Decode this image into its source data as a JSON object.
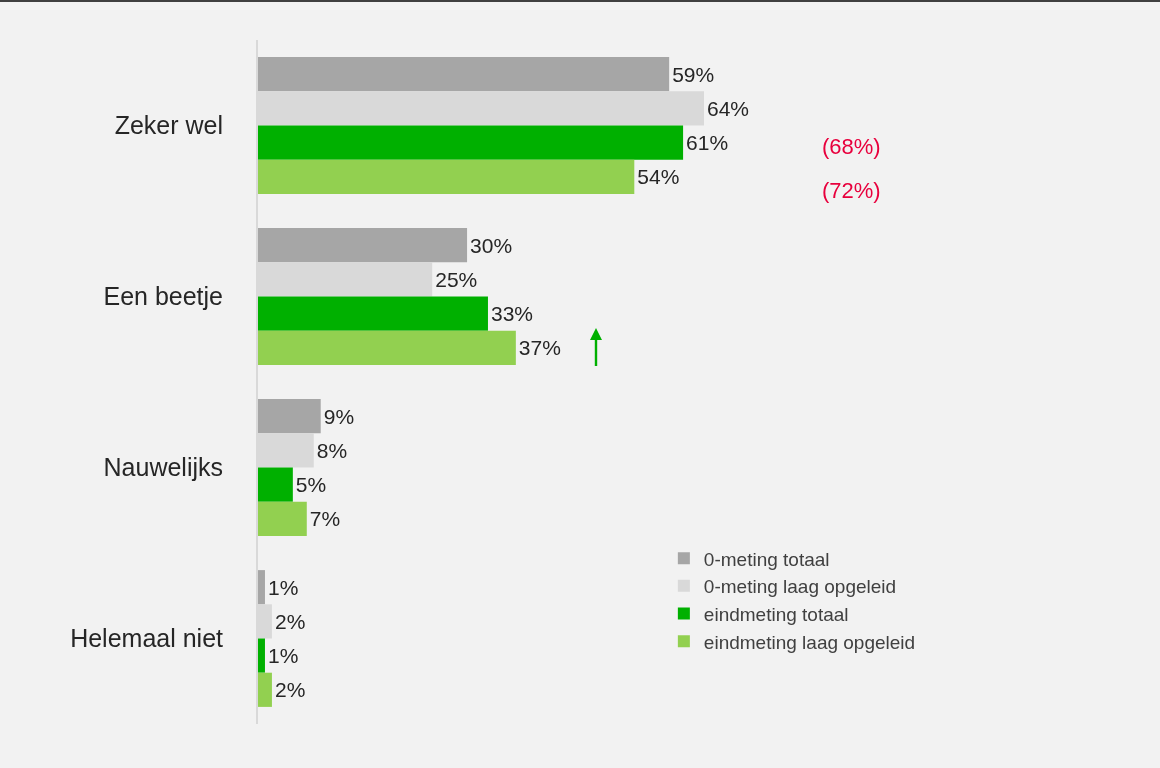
{
  "chart_data": {
    "type": "bar",
    "orientation": "horizontal",
    "categories": [
      "Zeker wel",
      "Een beetje",
      "Nauwelijks",
      "Helemaal niet"
    ],
    "series": [
      {
        "name": "0-meting totaal",
        "color": "#a6a6a6",
        "values": [
          59,
          30,
          9,
          1
        ],
        "value_labels": [
          "59%",
          "30%",
          "9%",
          "1%"
        ]
      },
      {
        "name": "0-meting laag opgeleid",
        "color": "#d9d9d9",
        "values": [
          64,
          25,
          8,
          2
        ],
        "value_labels": [
          "64%",
          "25%",
          "8%",
          "2%"
        ]
      },
      {
        "name": "eindmeting totaal",
        "color": "#00b000",
        "values": [
          61,
          33,
          5,
          1
        ],
        "value_labels": [
          "61%",
          "33%",
          "5%",
          "1%"
        ]
      },
      {
        "name": "eindmeting laag opgeleid",
        "color": "#92d050",
        "values": [
          54,
          37,
          7,
          2
        ],
        "value_labels": [
          "54%",
          "37%",
          "7%",
          "2%"
        ]
      }
    ],
    "annotations": [
      "(68%)",
      "(72%)"
    ],
    "legend": "bottom right",
    "grid": false
  }
}
